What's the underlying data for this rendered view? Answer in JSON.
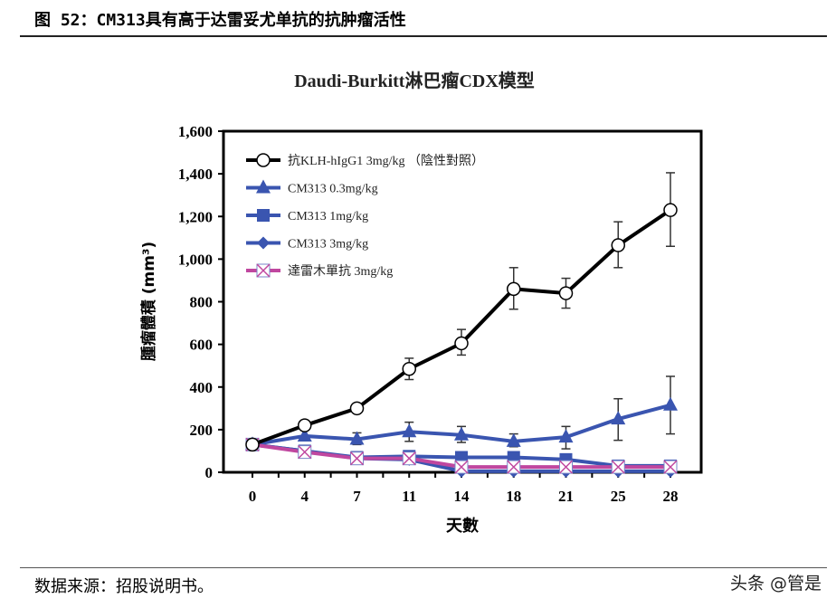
{
  "figure_title": "图 52：CM313具有高于达雷妥尤单抗的抗肿瘤活性",
  "source": "数据来源：招股说明书。",
  "watermark": "头条 @管是",
  "chart_data": {
    "type": "line",
    "title": "Daudi-Burkitt淋巴瘤CDX模型",
    "xlabel": "天數",
    "ylabel": "腫瘤體積 (mm³)",
    "categories": [
      "0",
      "4",
      "7",
      "11",
      "14",
      "18",
      "21",
      "25",
      "28"
    ],
    "ylim": [
      0,
      1600
    ],
    "yticks": [
      "0",
      "200",
      "400",
      "600",
      "800",
      "1,000",
      "1,200",
      "1,400",
      "1,600"
    ],
    "grid": false,
    "legend": "top-left",
    "series": [
      {
        "name": "抗KLH-hIgG1 3mg/kg （陰性對照）",
        "marker": "open-circle",
        "color": "#000000",
        "values": [
          130,
          220,
          300,
          485,
          605,
          860,
          840,
          1065,
          1230
        ],
        "err_low": [
          null,
          null,
          null,
          435,
          550,
          765,
          770,
          960,
          1060
        ],
        "err_high": [
          null,
          null,
          null,
          535,
          670,
          960,
          910,
          1175,
          1405
        ]
      },
      {
        "name": "CM313 0.3mg/kg",
        "marker": "triangle",
        "color": "#3a55b0",
        "values": [
          130,
          170,
          155,
          190,
          175,
          145,
          165,
          250,
          315
        ],
        "err_low": [
          null,
          null,
          130,
          145,
          140,
          120,
          110,
          150,
          180
        ],
        "err_high": [
          null,
          null,
          185,
          235,
          215,
          180,
          215,
          345,
          450
        ]
      },
      {
        "name": "CM313 1mg/kg",
        "marker": "square",
        "color": "#3a55b0",
        "values": [
          130,
          100,
          70,
          75,
          70,
          70,
          60,
          30,
          30
        ]
      },
      {
        "name": "CM313 3mg/kg",
        "marker": "diamond",
        "color": "#3a55b0",
        "values": [
          130,
          100,
          65,
          60,
          5,
          5,
          5,
          5,
          5
        ]
      },
      {
        "name": "達雷木單抗 3mg/kg",
        "marker": "x-box",
        "color": "#c0479f",
        "values": [
          130,
          95,
          65,
          65,
          25,
          25,
          25,
          25,
          25
        ]
      }
    ]
  }
}
